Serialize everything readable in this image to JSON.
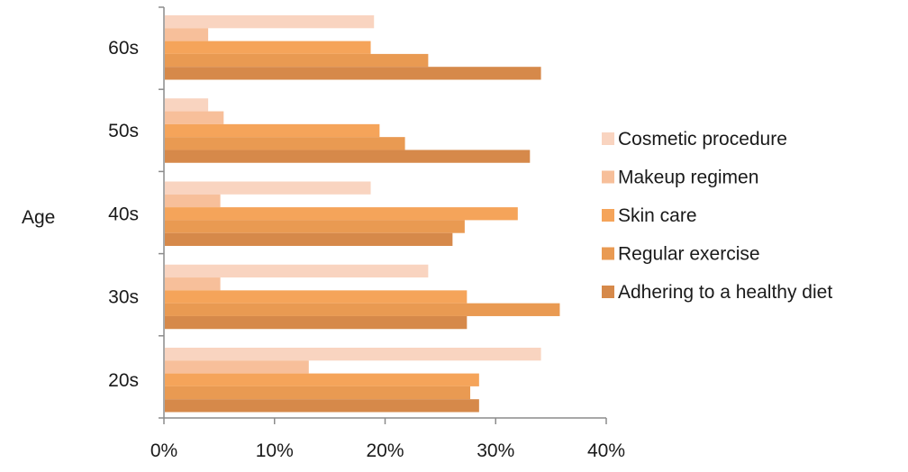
{
  "chart_data": {
    "type": "bar",
    "orientation": "horizontal",
    "title": "",
    "xlabel": "",
    "ylabel": "Age",
    "categories": [
      "60s",
      "50s",
      "40s",
      "30s",
      "20s"
    ],
    "xlim": [
      0,
      40
    ],
    "x_ticks": [
      "0%",
      "10%",
      "20%",
      "30%",
      "40%"
    ],
    "grid": false,
    "legend_position": "right",
    "series": [
      {
        "name": "Cosmetic procedure",
        "color": "#f9d4c0",
        "values": [
          19,
          4,
          18.7,
          23.9,
          34.1
        ]
      },
      {
        "name": "Makeup regimen",
        "color": "#f7bf9a",
        "values": [
          4,
          5.4,
          5.1,
          5.1,
          13.1
        ]
      },
      {
        "name": "Skin care",
        "color": "#f5a45a",
        "values": [
          18.7,
          19.5,
          32,
          27.4,
          28.5
        ]
      },
      {
        "name": "Regular exercise",
        "color": "#e99a52",
        "values": [
          23.9,
          21.8,
          27.2,
          35.8,
          27.7
        ]
      },
      {
        "name": "Adhering to a healthy diet",
        "color": "#d6894a",
        "values": [
          34.1,
          33.1,
          26.1,
          27.4,
          28.5
        ]
      }
    ]
  }
}
